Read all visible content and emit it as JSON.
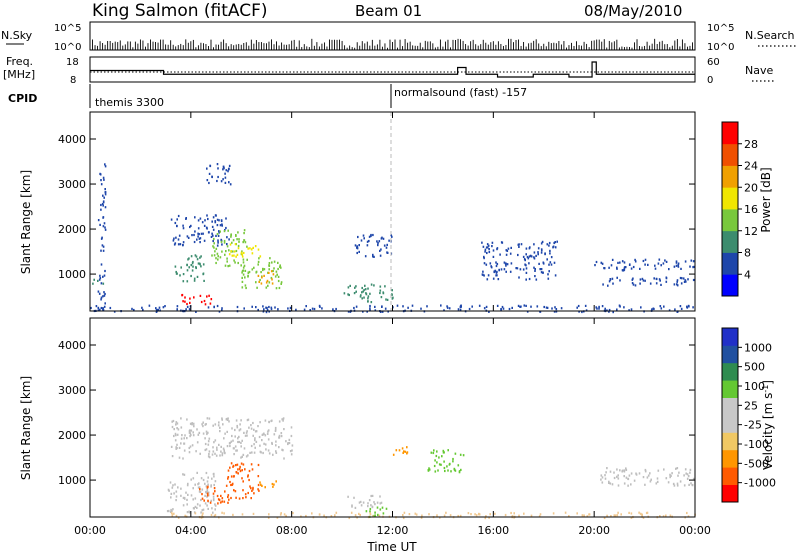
{
  "header": {
    "station": "King Salmon (fitACF)",
    "beam": "Beam 01",
    "date": "08/May/2010"
  },
  "strip_labels": {
    "nsky": "N.Sky",
    "nsearch": "N.Search",
    "freq_line1": "Freq.",
    "freq_line2": "[MHz]",
    "nave": "Nave",
    "cpid": "CPID",
    "cpid_modes": [
      "themis 3300",
      "normalsound (fast) -157"
    ]
  },
  "colors": {
    "power_scale": [
      "#0000ff",
      "#1e46aa",
      "#3c8c6e",
      "#78c83c",
      "#f0e600",
      "#f0a000",
      "#f05000",
      "#ff0000"
    ],
    "velocity_scale": [
      "#ff0000",
      "#ff5a00",
      "#ff9600",
      "#f0c864",
      "#c8c8c8",
      "#c8c8c8",
      "#64c832",
      "#2f8c50",
      "#2050a0",
      "#2030c8"
    ],
    "ground_scatter": "#bebebe"
  },
  "chart_data": [
    {
      "id": "nsky",
      "type": "line",
      "xlabel": "",
      "ylabel": "N.Sky",
      "xlim": [
        "00:00",
        "24:00"
      ],
      "ylim": [
        1,
        100000
      ],
      "log_scale": true,
      "ticks_left": [
        "10^5",
        "10^0"
      ],
      "ticks_right": [
        "10^5",
        "10^0"
      ]
    },
    {
      "id": "freq",
      "type": "line",
      "ylabel": "Freq. [MHz]",
      "ylim": [
        8,
        18
      ],
      "ticks_left": [
        "18",
        "8"
      ],
      "ticks_right": [
        "60",
        "0"
      ],
      "series": [
        {
          "name": "Freq.",
          "x": [
            "00:00",
            "02:55",
            "02:55",
            "14:35",
            "14:35",
            "14:55",
            "14:55",
            "16:10",
            "16:10",
            "17:35",
            "17:35",
            "19:00",
            "19:00",
            "19:55",
            "19:55",
            "20:05",
            "20:05",
            "24:00"
          ],
          "y": [
            12.6,
            12.6,
            11.1,
            11.1,
            13.8,
            13.8,
            11.1,
            11.1,
            10.0,
            10.0,
            11.1,
            11.1,
            10.0,
            10.0,
            16.0,
            16.0,
            11.1,
            11.1
          ]
        },
        {
          "name": "Nave",
          "x": [
            "00:00",
            "24:00"
          ],
          "y": [
            21,
            21
          ]
        }
      ]
    },
    {
      "id": "power",
      "type": "heatmap",
      "xlabel": "",
      "ylabel": "Slant Range [km]",
      "colorbar_label": "Power [dB]",
      "colorbar_ticks": [
        "28",
        "24",
        "20",
        "16",
        "12",
        "8",
        "4"
      ],
      "xlim": [
        "00:00",
        "24:00"
      ],
      "ylim": [
        180,
        4600
      ],
      "yticks": [
        "4000",
        "3000",
        "2000",
        "1000"
      ],
      "cells": [
        {
          "t0": 0.0,
          "t1": 0.5,
          "r0": 800,
          "r1": 950,
          "value": 8
        },
        {
          "t0": 0.3,
          "t1": 0.6,
          "r0": 200,
          "r1": 3500,
          "value": 4
        },
        {
          "t0": 3.2,
          "t1": 5.5,
          "r0": 1650,
          "r1": 2350,
          "value": 4
        },
        {
          "t0": 3.3,
          "t1": 4.5,
          "r0": 850,
          "r1": 1450,
          "value": 8
        },
        {
          "t0": 3.6,
          "t1": 4.8,
          "r0": 350,
          "r1": 600,
          "value": 28
        },
        {
          "t0": 4.8,
          "t1": 6.2,
          "r0": 1200,
          "r1": 2000,
          "value": 12
        },
        {
          "t0": 5.5,
          "t1": 6.8,
          "r0": 1400,
          "r1": 1700,
          "value": 18
        },
        {
          "t0": 6.0,
          "t1": 7.6,
          "r0": 700,
          "r1": 1400,
          "value": 14
        },
        {
          "t0": 6.6,
          "t1": 7.3,
          "r0": 800,
          "r1": 1100,
          "value": 22
        },
        {
          "t0": 4.6,
          "t1": 5.6,
          "r0": 3000,
          "r1": 3500,
          "value": 4
        },
        {
          "t0": 10.5,
          "t1": 12.0,
          "r0": 1400,
          "r1": 1900,
          "value": 4
        },
        {
          "t0": 10.0,
          "t1": 12.0,
          "r0": 400,
          "r1": 800,
          "value": 8
        },
        {
          "t0": 15.5,
          "t1": 18.5,
          "r0": 900,
          "r1": 1750,
          "value": 4
        },
        {
          "t0": 20.0,
          "t1": 24.0,
          "r0": 1100,
          "r1": 1350,
          "value": 4
        },
        {
          "t0": 20.0,
          "t1": 24.0,
          "r0": 750,
          "r1": 950,
          "value": 4
        },
        {
          "t0": 0.0,
          "t1": 24.0,
          "r0": 180,
          "r1": 330,
          "value": 4
        }
      ]
    },
    {
      "id": "velocity",
      "type": "heatmap",
      "xlabel": "Time UT",
      "ylabel": "Slant Range [km]",
      "colorbar_label": "Velocity [m s^-1]",
      "colorbar_ticks": [
        "1000",
        "500",
        "100",
        "25",
        "-25",
        "-100",
        "-500",
        "-1000"
      ],
      "xlim": [
        "00:00",
        "24:00"
      ],
      "xticks": [
        "00:00",
        "04:00",
        "08:00",
        "12:00",
        "16:00",
        "20:00",
        "00:00"
      ],
      "ylim": [
        180,
        4600
      ],
      "yticks": [
        "4000",
        "3000",
        "2000",
        "1000"
      ],
      "cells": [
        {
          "t0": 3.2,
          "t1": 8.0,
          "r0": 1500,
          "r1": 2400,
          "value": 0
        },
        {
          "t0": 3.0,
          "t1": 5.0,
          "r0": 300,
          "r1": 1200,
          "value": 0
        },
        {
          "t0": 4.3,
          "t1": 5.5,
          "r0": 500,
          "r1": 900,
          "value": -200
        },
        {
          "t0": 5.4,
          "t1": 6.7,
          "r0": 600,
          "r1": 1400,
          "value": -300
        },
        {
          "t0": 6.7,
          "t1": 7.4,
          "r0": 800,
          "r1": 1000,
          "value": -150
        },
        {
          "t0": 10.2,
          "t1": 11.6,
          "r0": 400,
          "r1": 700,
          "value": 0
        },
        {
          "t0": 10.8,
          "t1": 11.8,
          "r0": 200,
          "r1": 450,
          "value": 60
        },
        {
          "t0": 13.3,
          "t1": 14.8,
          "r0": 1200,
          "r1": 1700,
          "value": 60
        },
        {
          "t0": 12.0,
          "t1": 12.6,
          "r0": 1500,
          "r1": 1800,
          "value": -100
        },
        {
          "t0": 20.2,
          "t1": 24.0,
          "r0": 900,
          "r1": 1300,
          "value": 0
        },
        {
          "t0": 3.0,
          "t1": 24.0,
          "r0": 180,
          "r1": 300,
          "value": -40
        }
      ]
    }
  ]
}
